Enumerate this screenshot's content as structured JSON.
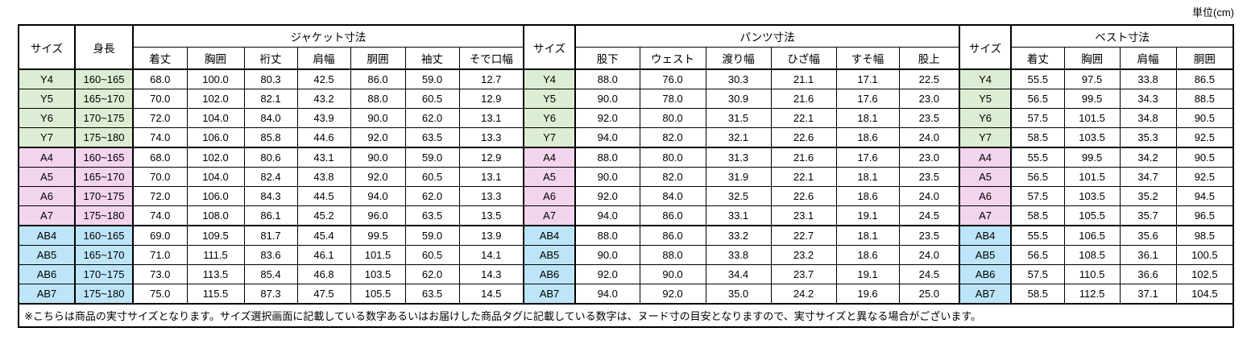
{
  "unit_label": "単位(cm)",
  "size_chart": {
    "headers": {
      "size": "サイズ",
      "height": "身長",
      "jacket": {
        "group": "ジャケット寸法",
        "cols": [
          "着丈",
          "胸囲",
          "裄丈",
          "肩幅",
          "胴囲",
          "袖丈",
          "そで口幅"
        ]
      },
      "pants": {
        "group": "パンツ寸法",
        "cols": [
          "股下",
          "ウェスト",
          "渡り幅",
          "ひざ幅",
          "すそ幅",
          "股上"
        ]
      },
      "vest": {
        "group": "ベスト寸法",
        "cols": [
          "着丈",
          "胸囲",
          "肩幅",
          "胴囲"
        ]
      }
    },
    "row_groups": [
      {
        "name": "Y",
        "row_color": "#dcedd4",
        "rows": [
          {
            "size": "Y4",
            "height": "160~165",
            "jacket": [
              "68.0",
              "100.0",
              "80.3",
              "42.5",
              "86.0",
              "59.0",
              "12.7"
            ],
            "pants": [
              "88.0",
              "76.0",
              "30.3",
              "21.1",
              "17.1",
              "22.5"
            ],
            "vest": [
              "55.5",
              "97.5",
              "33.8",
              "86.5"
            ]
          },
          {
            "size": "Y5",
            "height": "165~170",
            "jacket": [
              "70.0",
              "102.0",
              "82.1",
              "43.2",
              "88.0",
              "60.5",
              "12.9"
            ],
            "pants": [
              "90.0",
              "78.0",
              "30.9",
              "21.6",
              "17.6",
              "23.0"
            ],
            "vest": [
              "56.5",
              "99.5",
              "34.3",
              "88.5"
            ]
          },
          {
            "size": "Y6",
            "height": "170~175",
            "jacket": [
              "72.0",
              "104.0",
              "84.0",
              "43.9",
              "90.0",
              "62.0",
              "13.1"
            ],
            "pants": [
              "92.0",
              "80.0",
              "31.5",
              "22.1",
              "18.1",
              "23.5"
            ],
            "vest": [
              "57.5",
              "101.5",
              "34.8",
              "90.5"
            ]
          },
          {
            "size": "Y7",
            "height": "175~180",
            "jacket": [
              "74.0",
              "106.0",
              "85.8",
              "44.6",
              "92.0",
              "63.5",
              "13.3"
            ],
            "pants": [
              "94.0",
              "82.0",
              "32.1",
              "22.6",
              "18.6",
              "24.0"
            ],
            "vest": [
              "58.5",
              "103.5",
              "35.3",
              "92.5"
            ]
          }
        ]
      },
      {
        "name": "A",
        "row_color": "#f2d4ee",
        "rows": [
          {
            "size": "A4",
            "height": "160~165",
            "jacket": [
              "68.0",
              "102.0",
              "80.6",
              "43.1",
              "90.0",
              "59.0",
              "12.9"
            ],
            "pants": [
              "88.0",
              "80.0",
              "31.3",
              "21.6",
              "17.6",
              "23.0"
            ],
            "vest": [
              "55.5",
              "99.5",
              "34.2",
              "90.5"
            ]
          },
          {
            "size": "A5",
            "height": "165~170",
            "jacket": [
              "70.0",
              "104.0",
              "82.4",
              "43.8",
              "92.0",
              "60.5",
              "13.1"
            ],
            "pants": [
              "90.0",
              "82.0",
              "31.9",
              "22.1",
              "18.1",
              "23.5"
            ],
            "vest": [
              "56.5",
              "101.5",
              "34.7",
              "92.5"
            ]
          },
          {
            "size": "A6",
            "height": "170~175",
            "jacket": [
              "72.0",
              "106.0",
              "84.3",
              "44.5",
              "94.0",
              "62.0",
              "13.3"
            ],
            "pants": [
              "92.0",
              "84.0",
              "32.5",
              "22.6",
              "18.6",
              "24.0"
            ],
            "vest": [
              "57.5",
              "103.5",
              "35.2",
              "94.5"
            ]
          },
          {
            "size": "A7",
            "height": "175~180",
            "jacket": [
              "74.0",
              "108.0",
              "86.1",
              "45.2",
              "96.0",
              "63.5",
              "13.5"
            ],
            "pants": [
              "94.0",
              "86.0",
              "33.1",
              "23.1",
              "19.1",
              "24.5"
            ],
            "vest": [
              "58.5",
              "105.5",
              "35.7",
              "96.5"
            ]
          }
        ]
      },
      {
        "name": "AB",
        "row_color": "#bde5f8",
        "rows": [
          {
            "size": "AB4",
            "height": "160~165",
            "jacket": [
              "69.0",
              "109.5",
              "81.7",
              "45.4",
              "99.5",
              "59.0",
              "13.9"
            ],
            "pants": [
              "88.0",
              "86.0",
              "33.2",
              "22.7",
              "18.1",
              "23.5"
            ],
            "vest": [
              "55.5",
              "106.5",
              "35.6",
              "98.5"
            ]
          },
          {
            "size": "AB5",
            "height": "165~170",
            "jacket": [
              "71.0",
              "111.5",
              "83.6",
              "46.1",
              "101.5",
              "60.5",
              "14.1"
            ],
            "pants": [
              "90.0",
              "88.0",
              "33.8",
              "23.2",
              "18.6",
              "24.0"
            ],
            "vest": [
              "56.5",
              "108.5",
              "36.1",
              "100.5"
            ]
          },
          {
            "size": "AB6",
            "height": "170~175",
            "jacket": [
              "73.0",
              "113.5",
              "85.4",
              "46.8",
              "103.5",
              "62.0",
              "14.3"
            ],
            "pants": [
              "92.0",
              "90.0",
              "34.4",
              "23.7",
              "19.1",
              "24.5"
            ],
            "vest": [
              "57.5",
              "110.5",
              "36.6",
              "102.5"
            ]
          },
          {
            "size": "AB7",
            "height": "175~180",
            "jacket": [
              "75.0",
              "115.5",
              "87.3",
              "47.5",
              "105.5",
              "63.5",
              "14.5"
            ],
            "pants": [
              "94.0",
              "92.0",
              "35.0",
              "24.2",
              "19.6",
              "25.0"
            ],
            "vest": [
              "58.5",
              "112.5",
              "37.1",
              "104.5"
            ]
          }
        ]
      }
    ]
  },
  "footnote": "※こちらは商品の実寸サイズとなります。サイズ選択画面に記載している数字あるいはお届けした商品タグに記載している数字は、ヌード寸の目安となりますので、実寸サイズと異なる場合がございます。"
}
